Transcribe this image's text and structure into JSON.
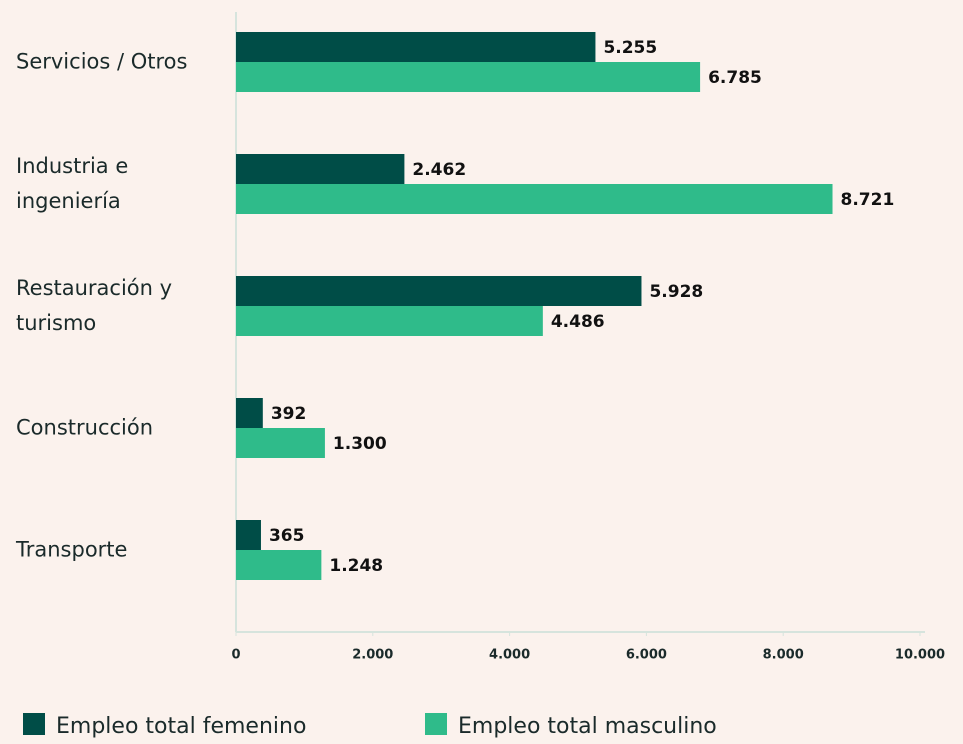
{
  "chart_data": {
    "type": "bar",
    "orientation": "horizontal",
    "categories": [
      "Servicios / Otros",
      "Industria e ingeniería",
      "Restauración y turismo",
      "Construcción",
      "Transporte"
    ],
    "series": [
      {
        "name": "Empleo total femenino",
        "color": "#004d47",
        "values": [
          5255,
          2462,
          5928,
          392,
          365
        ],
        "value_labels": [
          "5.255",
          "2.462",
          "5.928",
          "392",
          "365"
        ]
      },
      {
        "name": "Empleo total masculino",
        "color": "#2fbb8a",
        "values": [
          6785,
          8721,
          4486,
          1300,
          1248
        ],
        "value_labels": [
          "6.785",
          "8.721",
          "4.486",
          "1.300",
          "1.248"
        ]
      }
    ],
    "xlim": [
      0,
      10000
    ],
    "xticks": [
      0,
      {
        "value": 2000,
        "label": "2.000"
      },
      {
        "value": 4000,
        "label": "4.000"
      },
      {
        "value": 6000,
        "label": "6.000"
      },
      {
        "value": 8000,
        "label": "8.000"
      },
      {
        "value": 10000,
        "label": "10.000"
      }
    ],
    "grid": false,
    "legend": "bottom"
  }
}
